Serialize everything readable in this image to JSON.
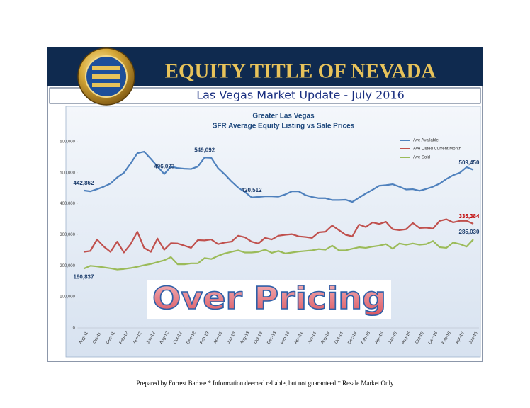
{
  "header": {
    "title": "EQUITY TITLE OF NEVADA",
    "subtitle": "Las Vegas Market Update - July 2016"
  },
  "chart_data": {
    "type": "line",
    "title": "Greater Las Vegas",
    "subtitle": "SFR Average Equity Listing vs Sale Prices",
    "annotation": "Over Pricing",
    "categories": [
      "Aug-11",
      null,
      "Oct-11",
      null,
      "Dec-11",
      null,
      "Feb-12",
      null,
      "Apr-12",
      null,
      "Jun-12",
      null,
      "Aug-12",
      null,
      "Oct-12",
      null,
      "Dec-12",
      null,
      "Feb-13",
      null,
      "Apr-13",
      null,
      "Jun-13",
      null,
      "Aug-13",
      null,
      "Oct-13",
      null,
      "Dec-13",
      null,
      "Feb-14",
      null,
      "Apr-14",
      null,
      "Jun-14",
      null,
      "Aug-14",
      null,
      "Oct-14",
      null,
      "Dec-14",
      null,
      "Feb-15",
      null,
      "Apr-15",
      null,
      "Jun-15",
      null,
      "Aug-15",
      null,
      "Oct-15",
      null,
      "Dec-15",
      null,
      "Feb-16",
      null,
      "Apr-16",
      null,
      "Jun-16"
    ],
    "series": [
      {
        "name": "Ave Available",
        "color": "#4f81bd",
        "label_color": "#1f3f6e",
        "values": [
          442862,
          440000,
          447000,
          455000,
          465000,
          485000,
          500000,
          530000,
          563000,
          568000,
          545000,
          520000,
          496023,
          520000,
          515000,
          513000,
          512000,
          520000,
          549092,
          548000,
          515000,
          495000,
          472000,
          452000,
          438000,
          420512,
          422000,
          424000,
          424000,
          423000,
          430000,
          440000,
          440000,
          428000,
          422000,
          418000,
          418000,
          412000,
          412000,
          413000,
          406000,
          420000,
          433000,
          445000,
          458000,
          460000,
          463000,
          455000,
          446000,
          447000,
          442000,
          448000,
          455000,
          465000,
          480000,
          492000,
          500000,
          518000,
          509450
        ],
        "value_labels": [
          "442,862",
          null,
          null,
          null,
          null,
          null,
          null,
          null,
          null,
          null,
          null,
          null,
          "496,023",
          null,
          null,
          null,
          null,
          null,
          "549,092",
          null,
          null,
          null,
          null,
          null,
          null,
          "420,512",
          null,
          null,
          null,
          null,
          null,
          null,
          null,
          null,
          null,
          null,
          null,
          null,
          null,
          null,
          null,
          null,
          null,
          null,
          null,
          null,
          null,
          null,
          null,
          null,
          null,
          null,
          null,
          null,
          null,
          null,
          null,
          null,
          "509,450"
        ]
      },
      {
        "name": "Ave Listed Current Month",
        "color": "#c0504d",
        "label_color": "#c00000",
        "values": [
          245000,
          248000,
          285000,
          262000,
          245000,
          278000,
          243000,
          270000,
          310000,
          258000,
          245000,
          288000,
          252000,
          273000,
          272000,
          265000,
          258000,
          283000,
          282000,
          285000,
          270000,
          275000,
          278000,
          297000,
          292000,
          278000,
          272000,
          290000,
          285000,
          297000,
          300000,
          302000,
          295000,
          293000,
          290000,
          308000,
          310000,
          330000,
          315000,
          300000,
          295000,
          333000,
          325000,
          340000,
          335000,
          342000,
          318000,
          315000,
          318000,
          338000,
          322000,
          323000,
          320000,
          345000,
          350000,
          340000,
          345000,
          345000,
          335384
        ],
        "value_labels": [
          null,
          null,
          null,
          null,
          null,
          null,
          null,
          null,
          null,
          null,
          null,
          null,
          null,
          null,
          null,
          null,
          null,
          null,
          null,
          null,
          null,
          null,
          null,
          null,
          null,
          null,
          null,
          null,
          null,
          null,
          null,
          null,
          null,
          null,
          null,
          null,
          null,
          null,
          null,
          null,
          null,
          null,
          null,
          null,
          null,
          null,
          null,
          null,
          null,
          null,
          null,
          null,
          null,
          null,
          null,
          null,
          null,
          null,
          "335,384"
        ]
      },
      {
        "name": "Ave Sold",
        "color": "#9bbb59",
        "label_color": "#1f3f6e",
        "values": [
          190837,
          200000,
          198000,
          195000,
          192000,
          188000,
          190000,
          193000,
          197000,
          202000,
          206000,
          212000,
          218000,
          228000,
          205000,
          205000,
          208000,
          208000,
          225000,
          222000,
          232000,
          240000,
          245000,
          250000,
          243000,
          243000,
          245000,
          252000,
          242000,
          248000,
          240000,
          243000,
          246000,
          248000,
          250000,
          254000,
          252000,
          265000,
          250000,
          250000,
          255000,
          260000,
          258000,
          262000,
          265000,
          270000,
          255000,
          272000,
          268000,
          272000,
          268000,
          270000,
          280000,
          260000,
          258000,
          275000,
          270000,
          262000,
          285030
        ],
        "value_labels": [
          "190,837",
          null,
          null,
          null,
          null,
          null,
          null,
          null,
          null,
          null,
          null,
          null,
          null,
          null,
          null,
          null,
          null,
          null,
          null,
          null,
          null,
          null,
          null,
          null,
          null,
          null,
          null,
          null,
          null,
          null,
          null,
          null,
          null,
          null,
          null,
          null,
          null,
          null,
          null,
          null,
          null,
          null,
          null,
          null,
          null,
          null,
          null,
          null,
          null,
          null,
          null,
          null,
          null,
          null,
          null,
          null,
          null,
          null,
          "285,030"
        ]
      }
    ],
    "ylim": [
      0,
      600000
    ],
    "yticks": [
      0,
      {
        "value": 100000,
        "label": "100,000"
      },
      {
        "value": 200000,
        "label": "200,000"
      },
      {
        "value": 300000,
        "label": "300,000"
      },
      {
        "value": 400000,
        "label": "400,000"
      },
      {
        "value": 500000,
        "label": "500,000"
      },
      {
        "value": 600000,
        "label": "600,000"
      }
    ],
    "grid": false,
    "legend": "top-right"
  },
  "footer": "Prepared by Forrest Barbee * Information deemed reliable, but not guaranteed * Resale Market Only"
}
